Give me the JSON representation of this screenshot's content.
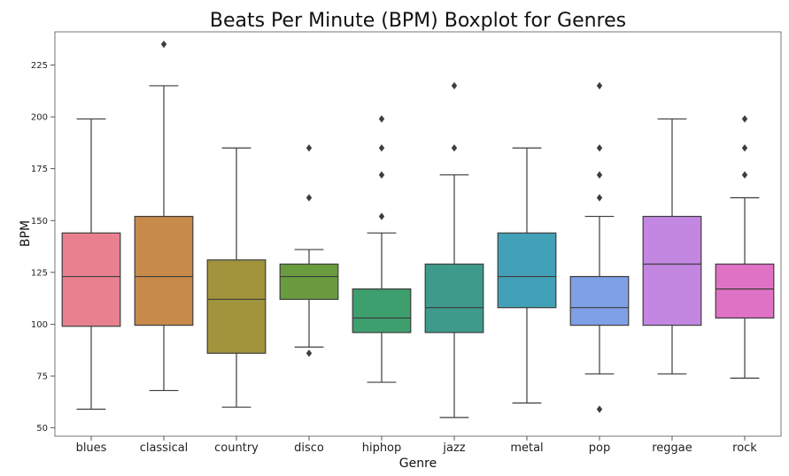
{
  "chart_data": {
    "type": "boxplot",
    "title": "Beats Per Minute (BPM) Boxplot for Genres",
    "xlabel": "Genre",
    "ylabel": "BPM",
    "ylim": [
      46,
      241
    ],
    "yticks": [
      50,
      75,
      100,
      125,
      150,
      175,
      200,
      225
    ],
    "grid": false,
    "legend": "none",
    "categories": [
      "blues",
      "classical",
      "country",
      "disco",
      "hiphop",
      "jazz",
      "metal",
      "pop",
      "reggae",
      "rock"
    ],
    "boxes": [
      {
        "label": "blues",
        "color": "#e8808f",
        "whisker_low": 59,
        "q1": 99,
        "median": 123,
        "q3": 144,
        "whisker_high": 199,
        "outliers": []
      },
      {
        "label": "classical",
        "color": "#c78a4a",
        "whisker_low": 68,
        "q1": 99.5,
        "median": 123,
        "q3": 152,
        "whisker_high": 215,
        "outliers": [
          235
        ]
      },
      {
        "label": "country",
        "color": "#a2943c",
        "whisker_low": 60,
        "q1": 86,
        "median": 112,
        "q3": 131,
        "whisker_high": 185,
        "outliers": []
      },
      {
        "label": "disco",
        "color": "#6a9c3f",
        "whisker_low": 89,
        "q1": 112,
        "median": 123,
        "q3": 129,
        "whisker_high": 136,
        "outliers": [
          86,
          161,
          185
        ]
      },
      {
        "label": "hiphop",
        "color": "#3e9f6e",
        "whisker_low": 72,
        "q1": 96,
        "median": 103,
        "q3": 117,
        "whisker_high": 144,
        "outliers": [
          152,
          172,
          185,
          199
        ]
      },
      {
        "label": "jazz",
        "color": "#3e9a8a",
        "whisker_low": 55,
        "q1": 96,
        "median": 108,
        "q3": 129,
        "whisker_high": 172,
        "outliers": [
          185,
          215
        ]
      },
      {
        "label": "metal",
        "color": "#43a0b9",
        "whisker_low": 62,
        "q1": 108,
        "median": 123,
        "q3": 144,
        "whisker_high": 185,
        "outliers": []
      },
      {
        "label": "pop",
        "color": "#7f9fe6",
        "whisker_low": 76,
        "q1": 99.5,
        "median": 108,
        "q3": 123,
        "whisker_high": 152,
        "outliers": [
          59,
          161,
          172,
          185,
          215
        ]
      },
      {
        "label": "reggae",
        "color": "#c387e2",
        "whisker_low": 76,
        "q1": 99.5,
        "median": 129,
        "q3": 152,
        "whisker_high": 199,
        "outliers": []
      },
      {
        "label": "rock",
        "color": "#e072c6",
        "whisker_low": 74,
        "q1": 103,
        "median": 117,
        "q3": 129,
        "whisker_high": 161,
        "outliers": [
          172,
          185,
          199
        ]
      }
    ]
  }
}
